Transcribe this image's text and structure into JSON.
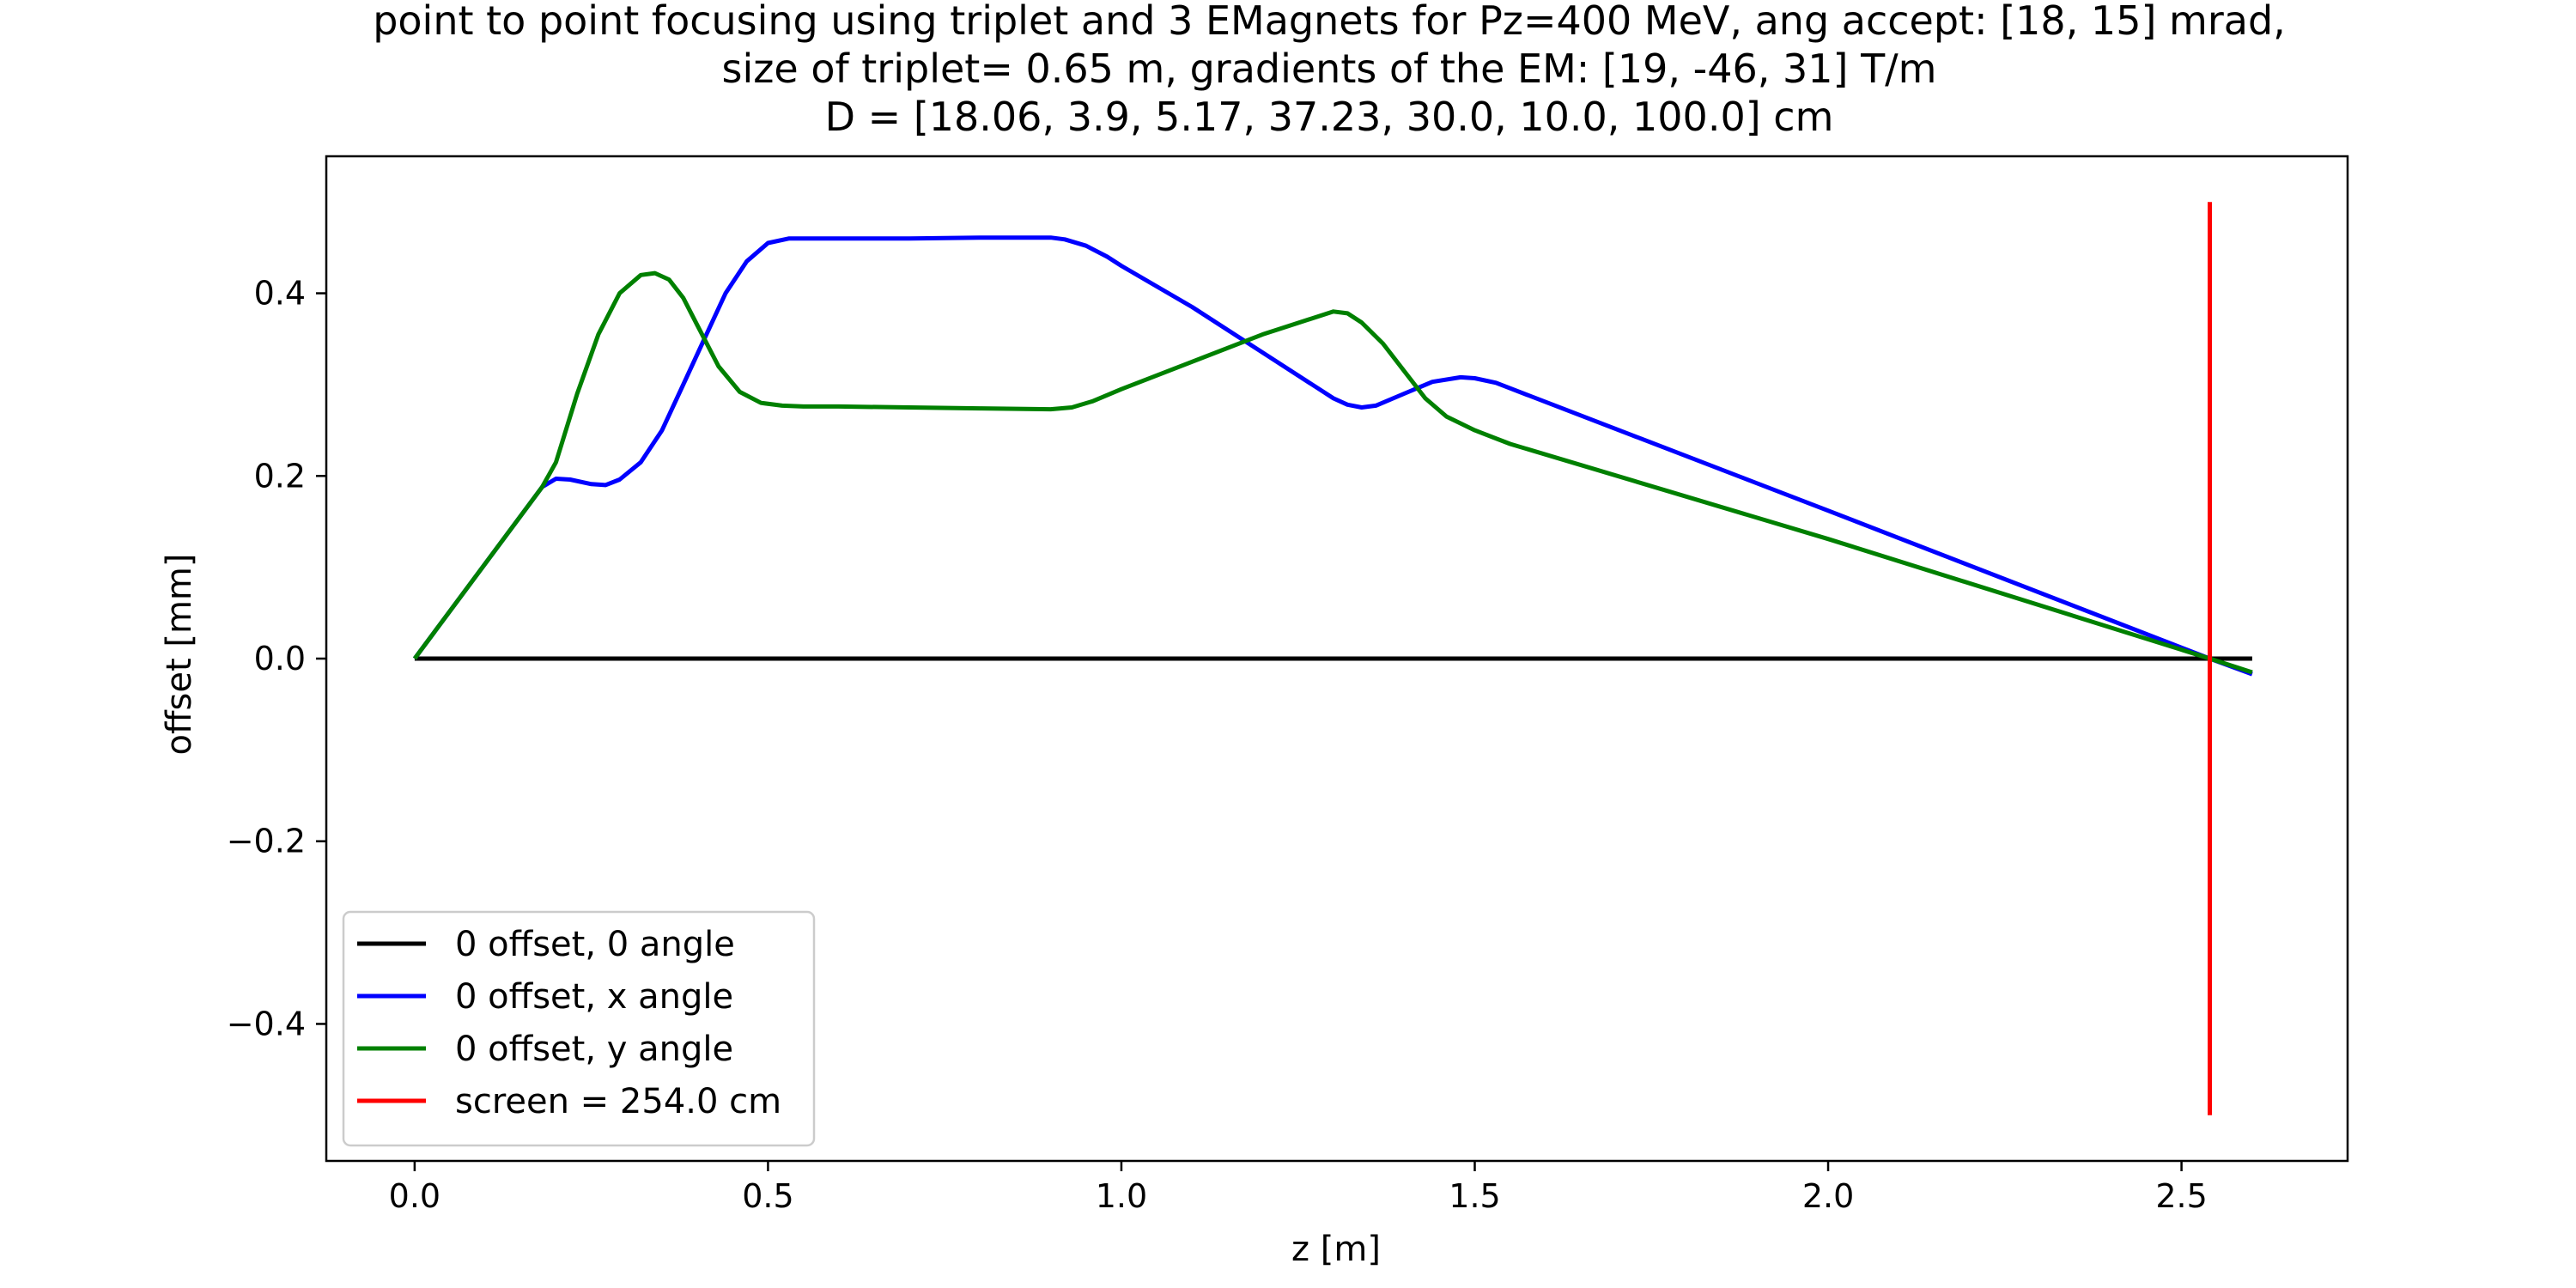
{
  "chart_data": {
    "type": "line",
    "title_lines": [
      "point to point focusing using triplet and 3 EMagnets for Pz=400 MeV, ang accept: [18, 15] mrad,",
      "size of triplet= 0.65 m, gradients of the EM: [19, -46, 31] T/m",
      "D = [18.06, 3.9, 5.17, 37.23, 30.0, 10.0, 100.0] cm"
    ],
    "xlabel": "z [m]",
    "ylabel": "offset [mm]",
    "xlim": [
      -0.125,
      2.735
    ],
    "ylim": [
      -0.55,
      0.55
    ],
    "x_ticks": [
      0.0,
      0.5,
      1.0,
      1.5,
      2.0,
      2.5
    ],
    "x_tick_labels": [
      "0.0",
      "0.5",
      "1.0",
      "1.5",
      "2.0",
      "2.5"
    ],
    "y_ticks": [
      0.4,
      0.2,
      0.0,
      -0.2,
      -0.4
    ],
    "y_tick_labels": [
      "0.4",
      "0.2",
      "0.0",
      "−0.2",
      "−0.4"
    ],
    "grid": false,
    "legend_position": "lower-left",
    "series": [
      {
        "name": "0 offset, 0 angle",
        "color": "#000000",
        "x": [
          0.0,
          2.6
        ],
        "y": [
          0.0,
          0.0
        ]
      },
      {
        "name": "0 offset, x angle",
        "color": "#0000ff",
        "x": [
          0.0,
          0.1806,
          0.2,
          0.22,
          0.25,
          0.27,
          0.29,
          0.32,
          0.35,
          0.38,
          0.41,
          0.44,
          0.47,
          0.5,
          0.53,
          0.56,
          0.6,
          0.7,
          0.8,
          0.9,
          0.92,
          0.95,
          0.98,
          1.0,
          1.1,
          1.2,
          1.28,
          1.3,
          1.32,
          1.34,
          1.36,
          1.4,
          1.44,
          1.48,
          1.5,
          1.53,
          1.55,
          2.0,
          2.54,
          2.6
        ],
        "y": [
          0.0,
          0.188,
          0.197,
          0.196,
          0.191,
          0.19,
          0.196,
          0.215,
          0.25,
          0.3,
          0.35,
          0.4,
          0.435,
          0.455,
          0.46,
          0.46,
          0.46,
          0.46,
          0.461,
          0.461,
          0.459,
          0.452,
          0.44,
          0.43,
          0.385,
          0.335,
          0.295,
          0.285,
          0.278,
          0.275,
          0.277,
          0.29,
          0.303,
          0.308,
          0.307,
          0.302,
          0.296,
          0.162,
          0.0,
          -0.017
        ]
      },
      {
        "name": "0 offset, y angle",
        "color": "#008000",
        "x": [
          0.0,
          0.1806,
          0.2,
          0.23,
          0.26,
          0.29,
          0.32,
          0.34,
          0.36,
          0.38,
          0.4,
          0.43,
          0.46,
          0.49,
          0.52,
          0.55,
          0.6,
          0.7,
          0.8,
          0.9,
          0.93,
          0.96,
          1.0,
          1.1,
          1.2,
          1.28,
          1.3,
          1.32,
          1.34,
          1.37,
          1.4,
          1.43,
          1.46,
          1.5,
          1.55,
          2.0,
          2.54,
          2.6
        ],
        "y": [
          0.0,
          0.188,
          0.215,
          0.29,
          0.355,
          0.4,
          0.42,
          0.422,
          0.415,
          0.395,
          0.365,
          0.32,
          0.292,
          0.28,
          0.277,
          0.276,
          0.276,
          0.275,
          0.274,
          0.273,
          0.275,
          0.282,
          0.295,
          0.325,
          0.355,
          0.375,
          0.38,
          0.378,
          0.368,
          0.345,
          0.315,
          0.285,
          0.265,
          0.25,
          0.235,
          0.131,
          0.0,
          -0.015
        ]
      },
      {
        "name": "screen = 254.0 cm",
        "color": "#ff0000",
        "x": [
          2.54,
          2.54
        ],
        "y": [
          -0.5,
          0.5
        ]
      }
    ]
  }
}
